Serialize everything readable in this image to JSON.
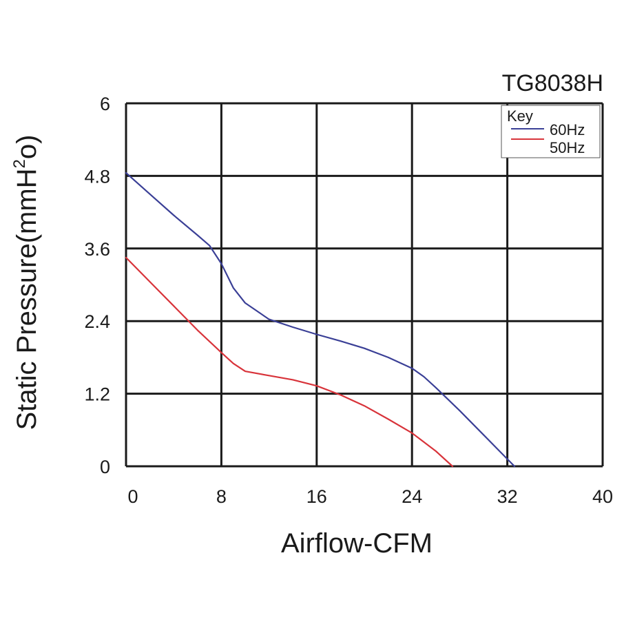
{
  "chart_data": {
    "type": "line",
    "title": "TG8038H",
    "xlabel": "Airflow-CFM",
    "ylabel_main": "Static Pressure(mmH",
    "ylabel_sup": "2",
    "ylabel_tail": "o)",
    "xlim": [
      0,
      40
    ],
    "ylim": [
      0,
      6
    ],
    "x_ticks": [
      0,
      8,
      16,
      24,
      32,
      40
    ],
    "y_ticks": [
      0,
      1.2,
      2.4,
      3.6,
      4.8,
      6
    ],
    "x_tick_labels": [
      "0",
      "8",
      "16",
      "24",
      "32",
      "40"
    ],
    "y_tick_labels": [
      "0",
      "1.2",
      "2.4",
      "3.6",
      "4.8",
      "6"
    ],
    "grid": true,
    "legend": {
      "title": "Key",
      "placement": "top-right"
    },
    "series": [
      {
        "name": "60Hz",
        "color": "#3a3f96",
        "x": [
          0,
          2,
          4,
          6,
          7,
          8,
          9,
          10,
          12,
          14,
          16,
          18,
          20,
          22,
          24,
          25,
          26,
          28,
          30,
          32,
          32.6
        ],
        "y": [
          4.85,
          4.5,
          4.15,
          3.82,
          3.65,
          3.35,
          2.95,
          2.7,
          2.43,
          2.3,
          2.18,
          2.07,
          1.95,
          1.8,
          1.62,
          1.48,
          1.3,
          0.92,
          0.52,
          0.12,
          0
        ]
      },
      {
        "name": "50Hz",
        "color": "#d8333a",
        "x": [
          0,
          2,
          4,
          6,
          8,
          9,
          10,
          12,
          14,
          16,
          18,
          20,
          22,
          24,
          26,
          27.4
        ],
        "y": [
          3.45,
          3.05,
          2.65,
          2.25,
          1.88,
          1.7,
          1.57,
          1.5,
          1.43,
          1.33,
          1.18,
          1.0,
          0.78,
          0.55,
          0.25,
          0
        ]
      }
    ]
  }
}
